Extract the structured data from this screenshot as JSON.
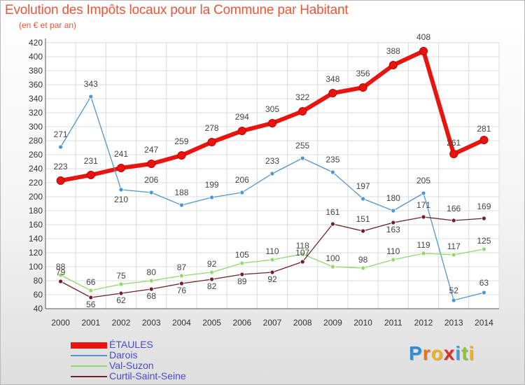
{
  "title": "Evolution des Impôts locaux pour la Commune par Habitant",
  "subtitle": "(en € et par an)",
  "brand": {
    "letters": [
      "P",
      "r",
      "o",
      "x",
      "i",
      "t",
      "i"
    ],
    "colors": [
      "#2a8fd8",
      "#e8741e",
      "#f0b21c",
      "#d6322a",
      "#3aa0d8",
      "#8cc43c",
      "#f0b21c"
    ]
  },
  "chart_data": {
    "type": "line",
    "title": "Evolution des Impôts locaux pour la Commune par Habitant",
    "subtitle": "(en € et par an)",
    "xlabel": "",
    "ylabel": "",
    "x": [
      "2000",
      "2001",
      "2002",
      "2003",
      "2004",
      "2005",
      "2006",
      "2007",
      "2008",
      "2009",
      "2010",
      "2011",
      "2012",
      "2013",
      "2014"
    ],
    "ylim": [
      40,
      420
    ],
    "yticks": [
      "40",
      "60",
      "80",
      "100",
      "120",
      "140",
      "160",
      "180",
      "200",
      "220",
      "240",
      "260",
      "280",
      "300",
      "320",
      "340",
      "360",
      "380",
      "400",
      "420"
    ],
    "grid": true,
    "legend": "bottom-left",
    "series": [
      {
        "name": "ÉTAULES",
        "color": "#e8140f",
        "values": [
          223,
          231,
          241,
          247,
          259,
          278,
          294,
          305,
          322,
          348,
          356,
          388,
          408,
          261,
          281
        ]
      },
      {
        "name": "Darois",
        "color": "#4f95cf",
        "values": [
          271,
          343,
          210,
          206,
          188,
          199,
          206,
          233,
          255,
          235,
          197,
          180,
          205,
          52,
          63
        ]
      },
      {
        "name": "Val-Suzon",
        "color": "#92d86c",
        "values": [
          88,
          66,
          75,
          80,
          87,
          92,
          105,
          110,
          118,
          100,
          98,
          110,
          119,
          117,
          125
        ]
      },
      {
        "name": "Curtil-Saint-Seine",
        "color": "#6e2126",
        "values": [
          79,
          56,
          62,
          68,
          76,
          82,
          89,
          92,
          107,
          161,
          151,
          163,
          171,
          166,
          169
        ]
      }
    ],
    "data_labels": [
      [
        "223",
        "231",
        "241",
        "247",
        "259",
        "278",
        "294",
        "305",
        "322",
        "348",
        "356",
        "388",
        "408",
        "261",
        "281"
      ],
      [
        "271",
        "343",
        "210",
        "206",
        "188",
        "199",
        "206",
        "233",
        "255",
        "235",
        "197",
        "180",
        "205",
        "52",
        "63"
      ],
      [
        "88",
        "66",
        "75",
        "80",
        "87",
        "92",
        "105",
        "110",
        "118",
        "100",
        "98",
        "110",
        "119",
        "117",
        "125"
      ],
      [
        "79",
        "56",
        "62",
        "68",
        "76",
        "82",
        "89",
        "92",
        "107",
        "161",
        "151",
        "163",
        "171",
        "166",
        "169"
      ]
    ]
  }
}
